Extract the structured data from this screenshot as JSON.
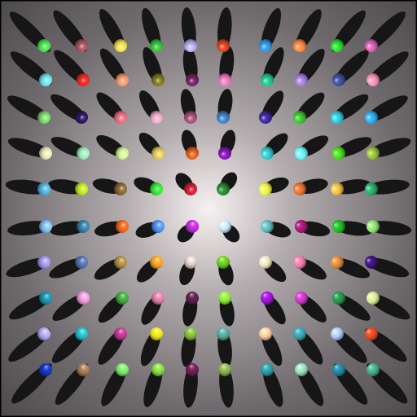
{
  "scene": {
    "background_gradient": [
      "#f7f1f1",
      "#b4aeb0",
      "#6f6a6d",
      "#4d4a4c"
    ],
    "shadow_color": "#161616",
    "rows": [
      [
        "#49d94c",
        "#9d4f59",
        "#e8d44a",
        "#36b539",
        "#aaa3e9",
        "#d03f1c",
        "#2f8edb",
        "#f5823e",
        "#2ad12f",
        "#cb5cab"
      ],
      [
        "#69d8e7",
        "#ea2620",
        "#f39068",
        "#77701b",
        "#6b1f5f",
        "#eb72b4",
        "#20b98a",
        "#a079d8",
        "#3a4a95",
        "#f28bb0"
      ],
      [
        "#74cc65",
        "#281659",
        "#e06878",
        "#eb9fc0",
        "#9a4b74",
        "#3e78b7",
        "#3b2596",
        "#3aba2d",
        "#2fc0d3",
        "#2da6eb"
      ],
      [
        "#dfe0ab",
        "#94e6b3",
        "#c4f08d",
        "#d8bf58",
        "#d45a1d",
        "#7e14a7",
        "#32bcc0",
        "#67f1f5",
        "#46d520",
        "#90b939"
      ],
      [
        "#4eaad6",
        "#b5e223",
        "#806332",
        "#34de35",
        "#bf1f31",
        "#25842f",
        "#ebef45",
        "#e26e2d",
        "#e9ba41",
        "#2aa465"
      ],
      [
        "#7db6f2",
        "#377ba2",
        "#ee6421",
        "#4d8ce7",
        "#b92cd5",
        "#c2e2f6",
        "#61b4b4",
        "#9f1977",
        "#20b227",
        "#8edc72"
      ],
      [
        "#9d8fe8",
        "#4f71a8",
        "#a58743",
        "#f59b26",
        "#d8c6c0",
        "#68c51d",
        "#ede1b7",
        "#ee79a4",
        "#d8883d",
        "#3b1277"
      ],
      [
        "#1c8daa",
        "#ee94d8",
        "#40a33b",
        "#dc7ba4",
        "#5c1f4a",
        "#8ee938",
        "#9c14db",
        "#c637c7",
        "#25914a",
        "#d6e892"
      ],
      [
        "#a9a1f5",
        "#24b6c1",
        "#b53788",
        "#e8e01f",
        "#80b53a",
        "#56a39b",
        "#f7c59b",
        "#38a0ac",
        "#a8c2f0",
        "#e94522"
      ],
      [
        "#1735b8",
        "#9e7553",
        "#79e56b",
        "#83d542",
        "#6c1d53",
        "#89ad50",
        "#2a9aa2",
        "#95d9b4",
        "#22829e",
        "#47a588"
      ]
    ]
  }
}
